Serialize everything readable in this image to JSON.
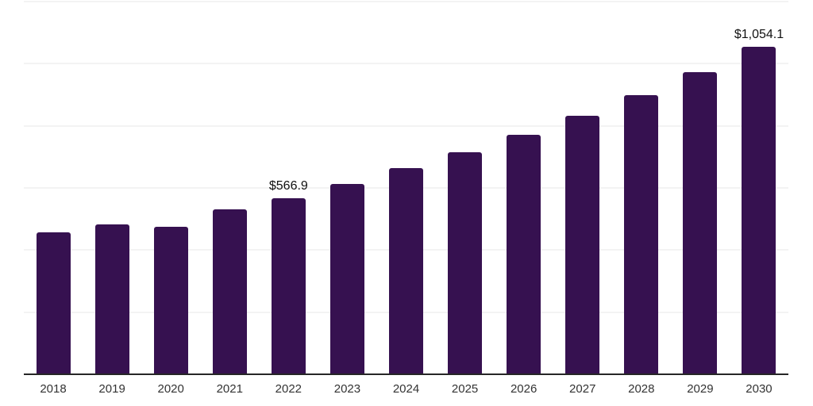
{
  "chart_data": {
    "type": "bar",
    "title": "",
    "xlabel": "",
    "ylabel": "",
    "categories": [
      "2018",
      "2019",
      "2020",
      "2021",
      "2022",
      "2023",
      "2024",
      "2025",
      "2026",
      "2027",
      "2028",
      "2029",
      "2030"
    ],
    "values": [
      457,
      483,
      474,
      530,
      566.9,
      613,
      663,
      715,
      772,
      832,
      899,
      973,
      1054.1
    ],
    "data_labels": [
      "",
      "",
      "",
      "",
      "$566.9",
      "",
      "",
      "",
      "",
      "",
      "",
      "",
      "$1,054.1"
    ],
    "ylim": [
      0,
      1200
    ],
    "gridline_step": 200,
    "grid": true,
    "legend": false,
    "currency_prefix": "$"
  },
  "style": {
    "background": "#ffffff",
    "bar_color": "#361150",
    "axis_line_color": "#262626",
    "gridline_color": "#f3f3f3",
    "tick_label_color": "#333333",
    "data_label_color": "#111111"
  }
}
